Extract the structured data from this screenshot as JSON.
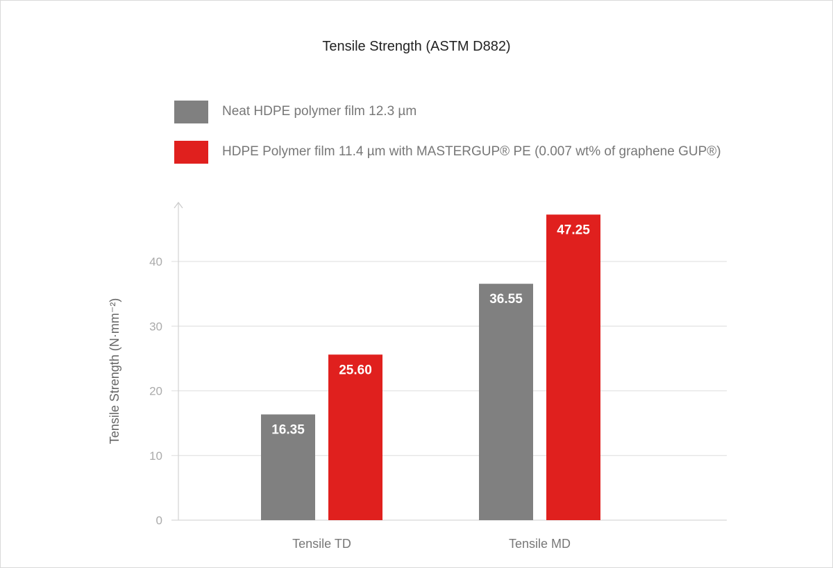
{
  "chart_data": {
    "type": "bar",
    "title": "Tensile Strength (ASTM D882)",
    "categories": [
      "Tensile TD",
      "Tensile MD"
    ],
    "series": [
      {
        "name": "Neat HDPE polymer film 12.3 µm",
        "color": "#808080",
        "values": [
          16.35,
          36.55
        ],
        "labels": [
          "16.35",
          "36.55"
        ]
      },
      {
        "name": "HDPE Polymer film 11.4 µm  with MASTERGUP® PE (0.007 wt% of graphene GUP®)",
        "color": "#e0201e",
        "values": [
          25.6,
          47.25
        ],
        "labels": [
          "25.60",
          "47.25"
        ]
      }
    ],
    "xlabel": "",
    "ylabel": "Tensile Strength (N·mm⁻²)",
    "yticks": [
      "0",
      "10",
      "20",
      "30",
      "40"
    ],
    "ylim": [
      0,
      47.5
    ],
    "grid": true,
    "legend": "top-left"
  }
}
